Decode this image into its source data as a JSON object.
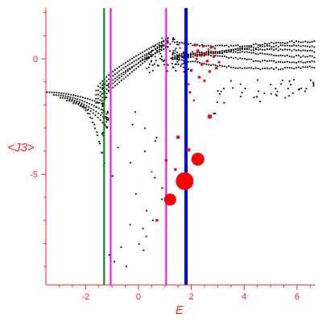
{
  "chart_data": {
    "type": "scatter",
    "title": "",
    "xlabel": "E",
    "ylabel": "<J3>",
    "xlim": [
      -3.5,
      6.7
    ],
    "ylim": [
      -9.8,
      2.2
    ],
    "xticks": [
      -2,
      0,
      2,
      4,
      6
    ],
    "yticks": [
      0,
      -5
    ],
    "grid": false,
    "colors": {
      "axis": "#ff2020",
      "background_points": "#000000",
      "highlight_points": "#ff0000",
      "green_line": "#008000",
      "magenta_line": "#ff00ff",
      "blue_line": "#0000ff"
    },
    "vertical_lines": [
      {
        "x": -1.3,
        "color": "#008000",
        "label": ""
      },
      {
        "x": -1.05,
        "color": "#ff00ff",
        "label": ""
      },
      {
        "x": 1.05,
        "color": "#ff00ff",
        "label": ""
      },
      {
        "x": 1.8,
        "color": "#0000ff",
        "label": ""
      }
    ],
    "series": [
      {
        "name": "",
        "kind": "background",
        "description_points": "dense black point cloud",
        "points": []
      },
      {
        "name": "",
        "kind": "highlight",
        "points": [
          {
            "x": 1.75,
            "y": -5.3,
            "size": 11
          },
          {
            "x": 2.25,
            "y": -4.35,
            "size": 8
          },
          {
            "x": 1.2,
            "y": -6.1,
            "size": 7.5
          },
          {
            "x": 2.7,
            "y": -2.5,
            "size": 3
          },
          {
            "x": 1.5,
            "y": -3.4,
            "size": 2.5
          },
          {
            "x": 1.9,
            "y": -3.95,
            "size": 2.5
          },
          {
            "x": 1.05,
            "y": -4.4,
            "size": 2
          },
          {
            "x": 1.4,
            "y": -4.8,
            "size": 2
          },
          {
            "x": 0.7,
            "y": -7.0,
            "size": 2
          },
          {
            "x": 0.9,
            "y": -5.6,
            "size": 1.5
          },
          {
            "x": 0.5,
            "y": -4.9,
            "size": 1.2
          },
          {
            "x": 1.95,
            "y": -1.45,
            "size": 1.8
          },
          {
            "x": 2.0,
            "y": -0.5,
            "size": 2
          },
          {
            "x": 2.15,
            "y": 0.6,
            "size": 2
          },
          {
            "x": 2.25,
            "y": 0.35,
            "size": 2
          },
          {
            "x": 2.35,
            "y": 0.15,
            "size": 2
          },
          {
            "x": 2.4,
            "y": -0.25,
            "size": 2
          },
          {
            "x": 2.55,
            "y": 0.2,
            "size": 2
          },
          {
            "x": 2.6,
            "y": -0.1,
            "size": 2
          },
          {
            "x": 2.7,
            "y": -0.55,
            "size": 2
          },
          {
            "x": 2.75,
            "y": 0.5,
            "size": 2
          },
          {
            "x": 2.85,
            "y": 0.1,
            "size": 2
          },
          {
            "x": 2.95,
            "y": -0.4,
            "size": 2
          },
          {
            "x": 2.3,
            "y": -0.8,
            "size": 2
          },
          {
            "x": 2.5,
            "y": -0.95,
            "size": 1.8
          },
          {
            "x": 3.05,
            "y": -0.15,
            "size": 1.8
          },
          {
            "x": 2.2,
            "y": 0.0,
            "size": 1.8
          },
          {
            "x": 2.45,
            "y": 0.55,
            "size": 1.8
          },
          {
            "x": 2.05,
            "y": 0.3,
            "size": 1.5
          },
          {
            "x": 2.65,
            "y": 0.4,
            "size": 1.5
          },
          {
            "x": 2.9,
            "y": 0.45,
            "size": 1.5
          },
          {
            "x": 1.9,
            "y": -1.1,
            "size": 1.5
          },
          {
            "x": 2.1,
            "y": -1.8,
            "size": 1.5
          }
        ]
      }
    ]
  }
}
